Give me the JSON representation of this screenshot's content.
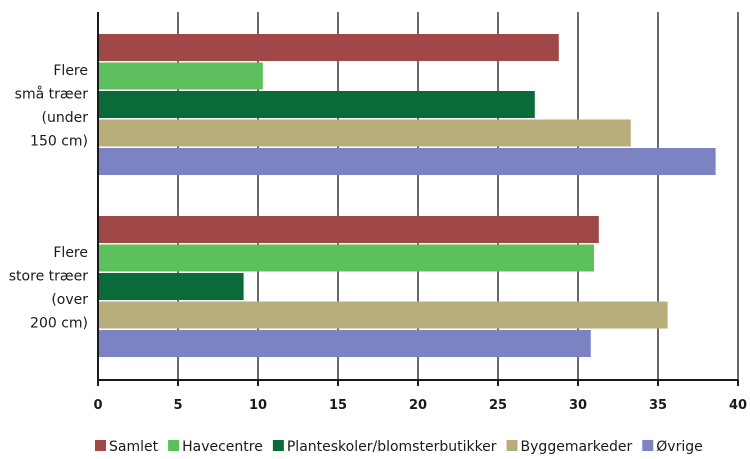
{
  "chart_data": {
    "type": "bar",
    "orientation": "horizontal",
    "categories": [
      [
        "Flere",
        "små træer",
        "(under",
        "150 cm)"
      ],
      [
        "Flere",
        "store træer",
        "(over",
        "200 cm)"
      ]
    ],
    "series": [
      {
        "name": "Samlet",
        "color": "#a04848",
        "values": [
          28.8,
          31.3
        ]
      },
      {
        "name": "Havecentre",
        "color": "#5cc05c",
        "values": [
          10.3,
          31.0
        ]
      },
      {
        "name": "Planteskoler/blomsterbutikker",
        "color": "#0b6a3a",
        "values": [
          27.3,
          9.1
        ]
      },
      {
        "name": "Byggemarkeder",
        "color": "#b8ae7c",
        "values": [
          33.3,
          35.6
        ]
      },
      {
        "name": "Øvrige",
        "color": "#7b83c2",
        "values": [
          38.6,
          30.8
        ]
      }
    ],
    "x_ticks": [
      0,
      5,
      10,
      15,
      20,
      25,
      30,
      35,
      40
    ],
    "xlim": [
      0,
      40
    ],
    "grid": true,
    "legend": "bottom"
  }
}
